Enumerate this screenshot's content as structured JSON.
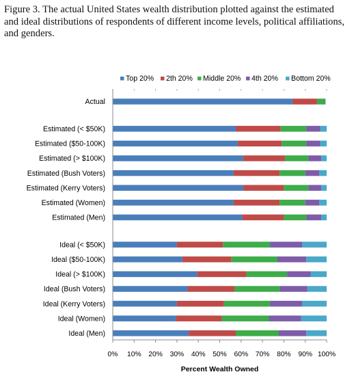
{
  "caption": "Figure 3. The actual United States wealth distribution plotted against the estimated and ideal distributions of respondents of different income levels, political affiliations, and genders.",
  "colors": {
    "top20": "#4a7ebb",
    "second20": "#be4b48",
    "middle20": "#3dac49",
    "fourth20": "#7e5ca8",
    "bottom20": "#4aa8c9"
  },
  "chart_data": {
    "type": "bar",
    "orientation": "horizontal",
    "stacked": true,
    "xlabel": "Percent Wealth Owned",
    "xlim": [
      0,
      100
    ],
    "xticks": [
      "0%",
      "10%",
      "20%",
      "30%",
      "40%",
      "50%",
      "60%",
      "70%",
      "80%",
      "90%",
      "100%"
    ],
    "legend_position": "top",
    "grid": false,
    "categories": [
      "Actual",
      "Estimated (< $50K)",
      "Estimated ($50-100K)",
      "Estimated (> $100K)",
      "Estimated (Bush Voters)",
      "Estimated (Kerry Voters)",
      "Estimated (Women)",
      "Estimated (Men)",
      "Ideal (< $50K)",
      "Ideal ($50-100K)",
      "Ideal (> $100K)",
      "Ideal (Bush Voters)",
      "Ideal (Kerry Voters)",
      "Ideal (Women)",
      "Ideal (Men)"
    ],
    "groups": [
      [
        0
      ],
      [
        1,
        2,
        3,
        4,
        5,
        6,
        7
      ],
      [
        8,
        9,
        10,
        11,
        12,
        13,
        14
      ]
    ],
    "series": [
      {
        "name": "Top 20%",
        "color_key": "top20",
        "values": [
          84.0,
          57.5,
          58.5,
          61.0,
          56.5,
          61.0,
          56.5,
          60.5,
          30.0,
          32.5,
          39.5,
          35.0,
          30.0,
          29.5,
          35.5
        ]
      },
      {
        "name": "2th 20%",
        "color_key": "second20",
        "values": [
          11.5,
          21.0,
          20.5,
          19.5,
          21.5,
          19.0,
          21.5,
          19.5,
          21.5,
          23.0,
          23.0,
          22.0,
          22.0,
          21.5,
          22.0
        ]
      },
      {
        "name": "Middle 20%",
        "color_key": "middle20",
        "values": [
          3.7,
          12.0,
          11.5,
          11.0,
          12.0,
          11.5,
          12.0,
          10.5,
          22.0,
          21.5,
          19.0,
          21.0,
          21.5,
          22.0,
          20.0
        ]
      },
      {
        "name": "4th 20%",
        "color_key": "fourth20",
        "values": [
          0.2,
          6.5,
          6.5,
          6.0,
          6.5,
          6.0,
          6.5,
          7.0,
          15.0,
          13.5,
          11.0,
          13.0,
          15.0,
          15.0,
          13.0
        ]
      },
      {
        "name": "Bottom 20%",
        "color_key": "bottom20",
        "values": [
          0.1,
          3.0,
          3.0,
          2.5,
          3.5,
          2.5,
          3.5,
          2.5,
          11.5,
          9.5,
          7.5,
          9.0,
          11.5,
          12.0,
          9.5
        ]
      }
    ]
  }
}
